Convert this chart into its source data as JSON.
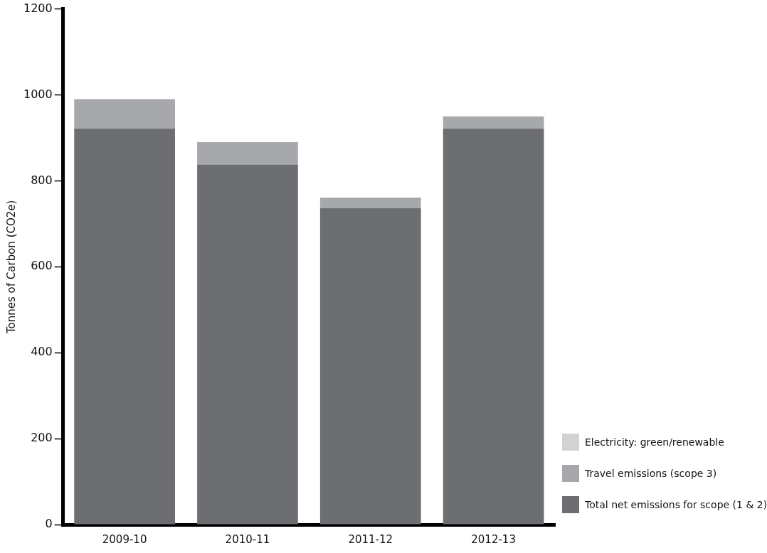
{
  "chart_data": {
    "type": "bar",
    "ylabel": "Tonnes of Carbon (CO2e)",
    "categories": [
      "2009-10",
      "2010-11",
      "2011-12",
      "2012-13"
    ],
    "stacked": true,
    "series": [
      {
        "name": "Total net emissions for scope (1 & 2)",
        "color": "#6d6e72",
        "values": [
          922,
          838,
          736,
          922
        ]
      },
      {
        "name": "Travel emissions (scope 3)",
        "color": "#a7a8ab",
        "values": [
          68,
          52,
          25,
          28
        ]
      },
      {
        "name": "Electricity: green/renewable",
        "color": "#d1d2d4",
        "values": [
          0,
          0,
          0,
          0
        ]
      }
    ],
    "ylim": [
      0,
      1200
    ],
    "yticks": [
      0,
      200,
      400,
      600,
      800,
      1000,
      1200
    ],
    "grid": false,
    "legend": "bottom right"
  }
}
